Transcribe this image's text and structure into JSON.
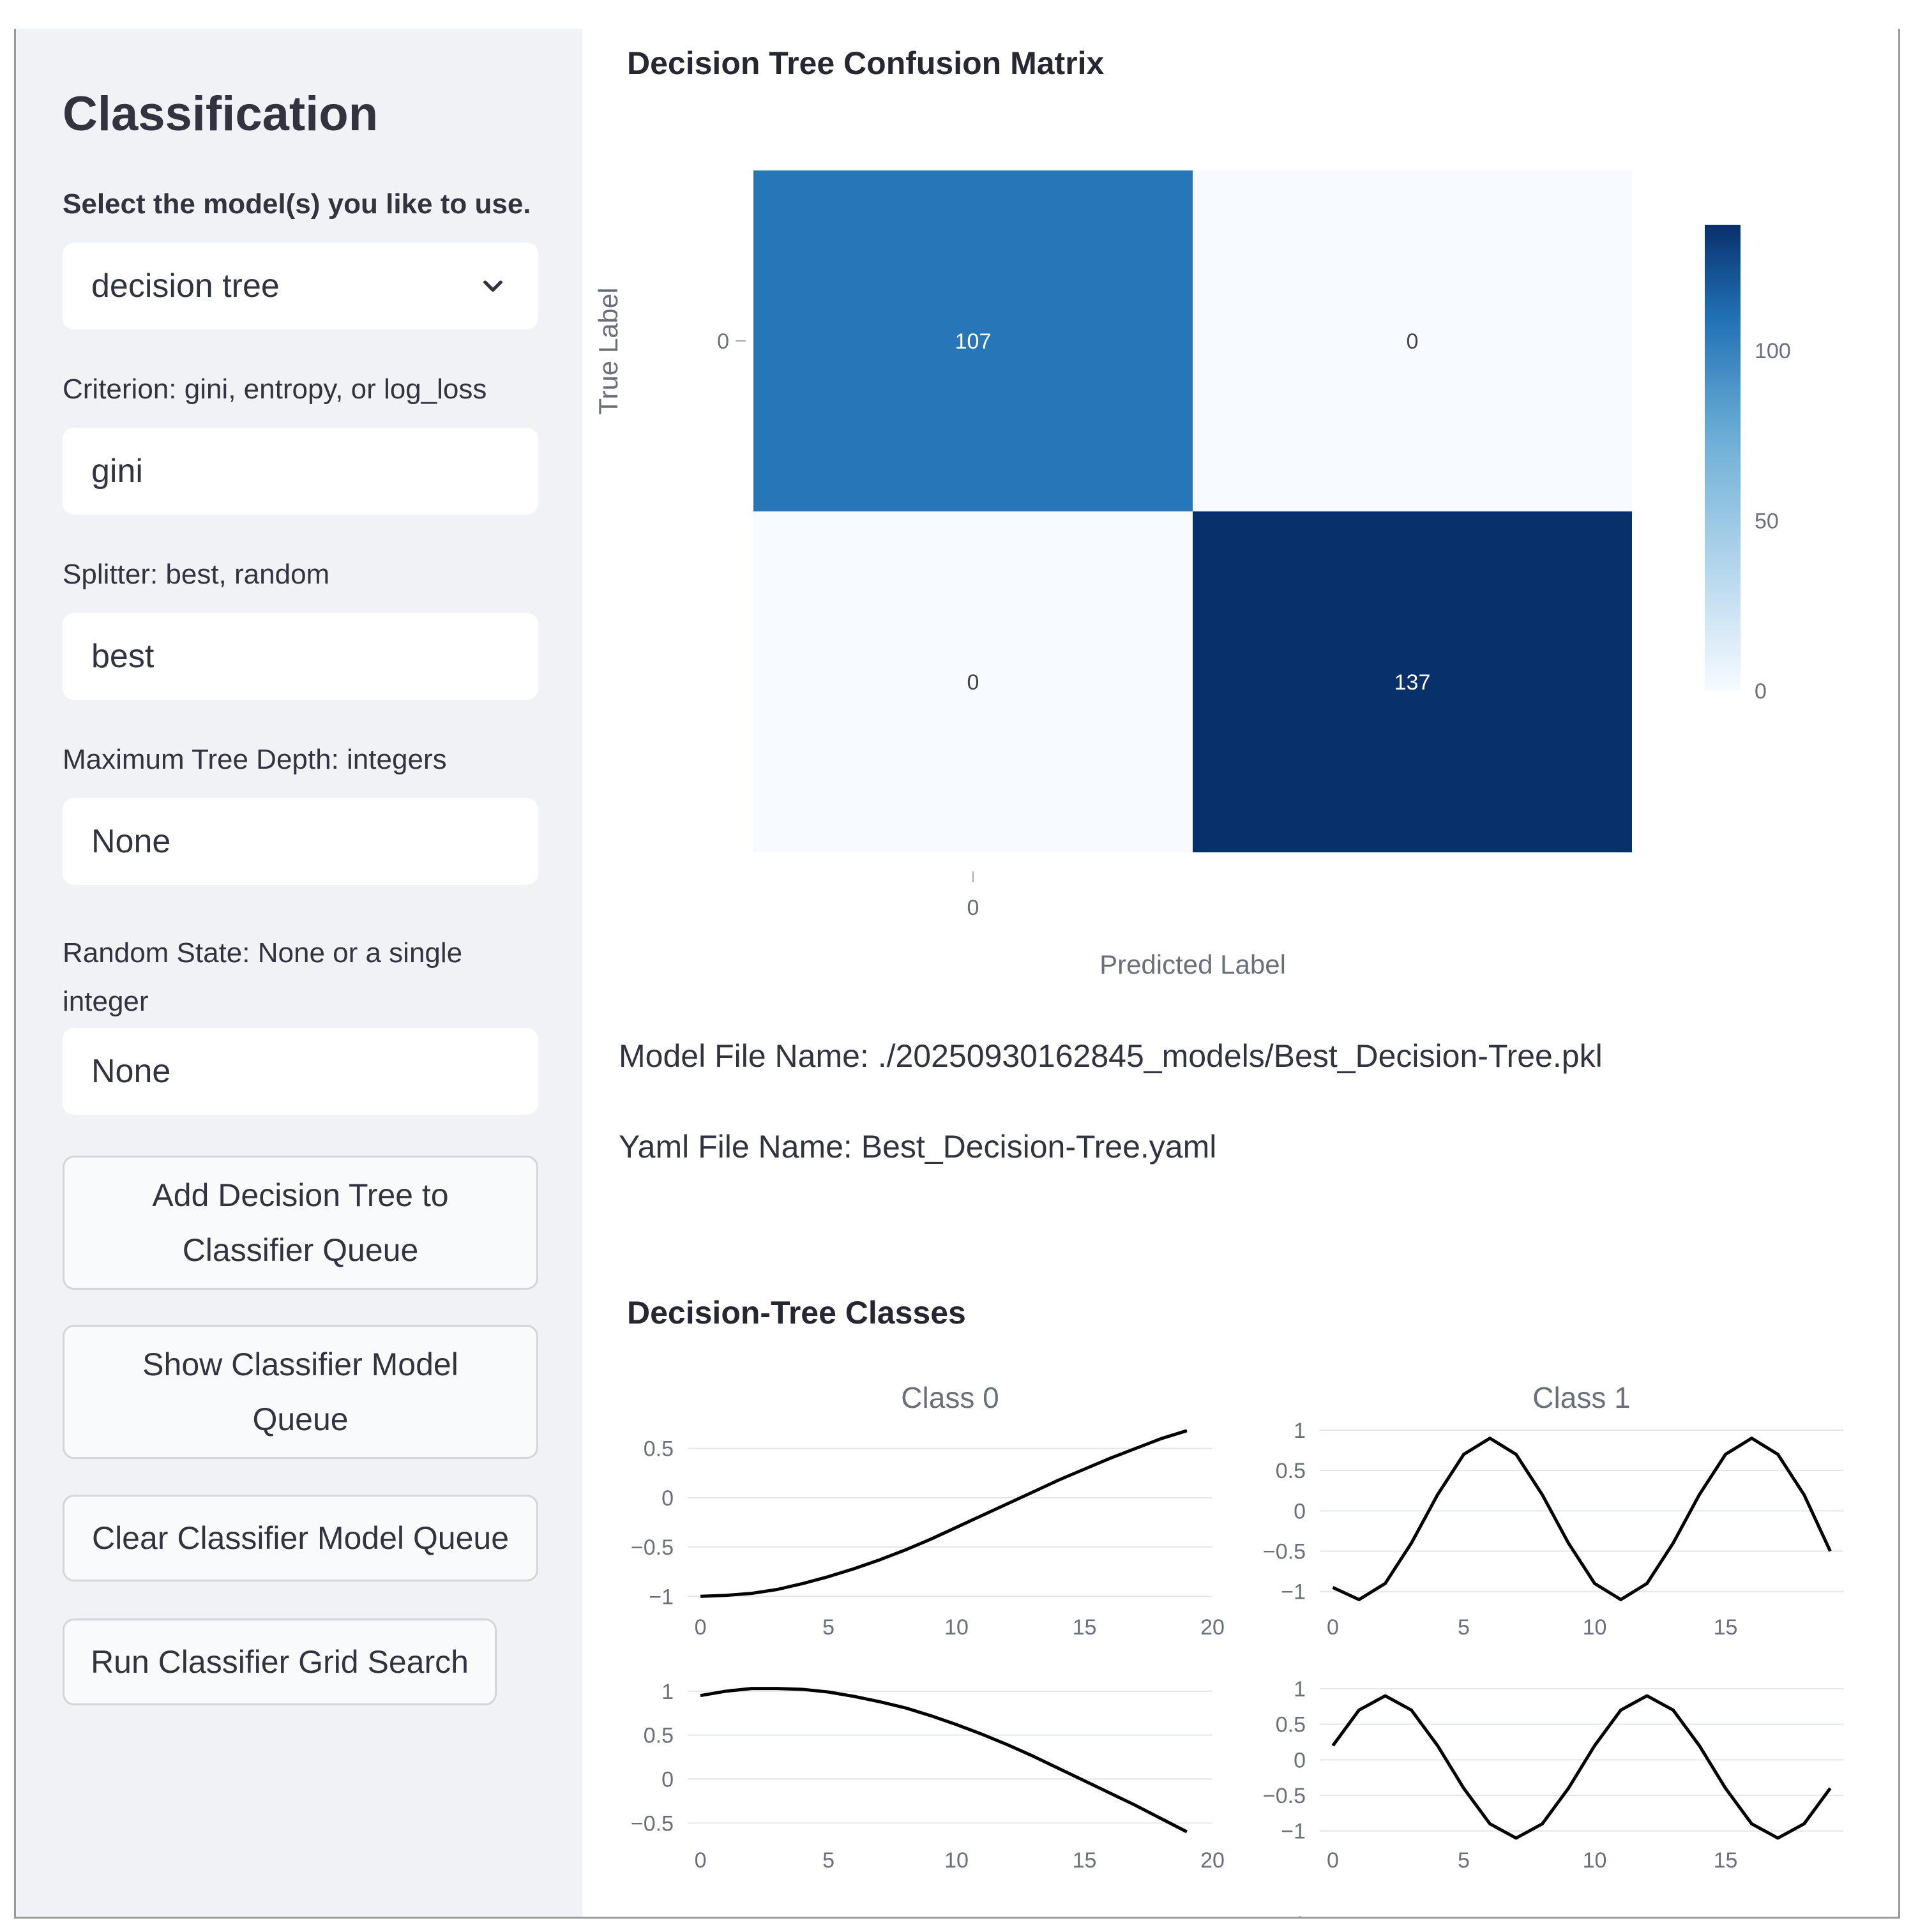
{
  "sidebar": {
    "title": "Classification",
    "model_select_label": "Select the model(s) you like to use.",
    "model_select_value": "decision tree",
    "criterion_label": "Criterion: gini, entropy, or log_loss",
    "criterion_value": "gini",
    "splitter_label": "Splitter: best, random",
    "splitter_value": "best",
    "max_depth_label": "Maximum Tree Depth: integers",
    "max_depth_value": "None",
    "random_state_label": "Random State: None or a single integer",
    "random_state_value": "None",
    "buttons": {
      "add": "Add Decision Tree to Classifier Queue",
      "show": "Show Classifier Model Queue",
      "clear": "Clear Classifier Model Queue",
      "run": "Run Classifier Grid Search"
    }
  },
  "main": {
    "confusion_heading": "Decision Tree Confusion Matrix",
    "model_file": "Model File Name: ./20250930162845_models/Best_Decision-Tree.pkl",
    "yaml_file": "Yaml File Name: Best_Decision-Tree.yaml",
    "classes_heading": "Decision-Tree Classes"
  },
  "chart_data": [
    {
      "type": "heatmap",
      "title": "",
      "xlabel": "Predicted Label",
      "ylabel": "True Label",
      "x_tick_labels": [
        "0"
      ],
      "y_tick_labels": [
        "0"
      ],
      "matrix": [
        [
          107,
          0
        ],
        [
          0,
          137
        ]
      ],
      "colorscale": "Blues",
      "colorbar_range": [
        0,
        137
      ],
      "colorbar_ticks": [
        0,
        50,
        100
      ],
      "colors": {
        "low": "#f7fbff",
        "mid": "#2171b5",
        "high": "#08306b"
      }
    },
    {
      "type": "line",
      "subplot_titles": [
        "Class 0",
        "Class 1"
      ],
      "line_color": "#000000",
      "grid": true,
      "panels": [
        {
          "name": "",
          "x": [
            0,
            1,
            2,
            3,
            4,
            5,
            6,
            7,
            8,
            9,
            10,
            11,
            12,
            13,
            14,
            15,
            16,
            17,
            18,
            19
          ],
          "y": [
            -1.0,
            -0.99,
            -0.97,
            -0.93,
            -0.87,
            -0.8,
            -0.72,
            -0.63,
            -0.53,
            -0.42,
            -0.3,
            -0.18,
            -0.06,
            0.06,
            0.18,
            0.29,
            0.4,
            0.5,
            0.6,
            0.68
          ],
          "xlim": [
            -0.5,
            20
          ],
          "ylim": [
            -1.05,
            0.75
          ],
          "y_ticks": [
            0.5,
            0,
            -0.5,
            -1
          ],
          "y_tick_labels": [
            "0.5",
            "0",
            "−0.5",
            "−1"
          ],
          "x_ticks": [
            0,
            5,
            10,
            15,
            20
          ]
        },
        {
          "name": "",
          "x": [
            0,
            1,
            2,
            3,
            4,
            5,
            6,
            7,
            8,
            9,
            10,
            11,
            12,
            13,
            14,
            15,
            16,
            17,
            18,
            19
          ],
          "y": [
            -0.95,
            -1.1,
            -0.9,
            -0.4,
            0.2,
            0.7,
            0.9,
            0.7,
            0.2,
            -0.4,
            -0.9,
            -1.1,
            -0.9,
            -0.4,
            0.2,
            0.7,
            0.9,
            0.7,
            0.2,
            -0.5
          ],
          "xlim": [
            -0.5,
            19.5
          ],
          "ylim": [
            -1.2,
            1.0
          ],
          "y_ticks": [
            1,
            0.5,
            0,
            -0.5,
            -1
          ],
          "y_tick_labels": [
            "1",
            "0.5",
            "0",
            "−0.5",
            "−1"
          ],
          "x_ticks": [
            0,
            5,
            10,
            15
          ]
        },
        {
          "name": "",
          "x": [
            0,
            1,
            2,
            3,
            4,
            5,
            6,
            7,
            8,
            9,
            10,
            11,
            12,
            13,
            14,
            15,
            16,
            17,
            18,
            19
          ],
          "y": [
            0.95,
            1.0,
            1.03,
            1.03,
            1.02,
            0.99,
            0.94,
            0.88,
            0.81,
            0.72,
            0.62,
            0.51,
            0.39,
            0.26,
            0.12,
            -0.02,
            -0.16,
            -0.3,
            -0.45,
            -0.6
          ],
          "xlim": [
            -0.5,
            20
          ],
          "ylim": [
            -0.65,
            1.1
          ],
          "y_ticks": [
            1,
            0.5,
            0,
            -0.5
          ],
          "y_tick_labels": [
            "1",
            "0.5",
            "0",
            "−0.5"
          ],
          "x_ticks": [
            0,
            5,
            10,
            15,
            20
          ]
        },
        {
          "name": "",
          "x": [
            0,
            1,
            2,
            3,
            4,
            5,
            6,
            7,
            8,
            9,
            10,
            11,
            12,
            13,
            14,
            15,
            16,
            17,
            18,
            19
          ],
          "y": [
            0.2,
            0.7,
            0.9,
            0.7,
            0.2,
            -0.4,
            -0.9,
            -1.1,
            -0.9,
            -0.4,
            0.2,
            0.7,
            0.9,
            0.7,
            0.2,
            -0.4,
            -0.9,
            -1.1,
            -0.9,
            -0.4
          ],
          "xlim": [
            -0.5,
            19.5
          ],
          "ylim": [
            -1.2,
            1.0
          ],
          "y_ticks": [
            1,
            0.5,
            0,
            -0.5,
            -1
          ],
          "y_tick_labels": [
            "1",
            "0.5",
            "0",
            "−0.5",
            "−1"
          ],
          "x_ticks": [
            0,
            5,
            10,
            15
          ]
        }
      ]
    }
  ]
}
